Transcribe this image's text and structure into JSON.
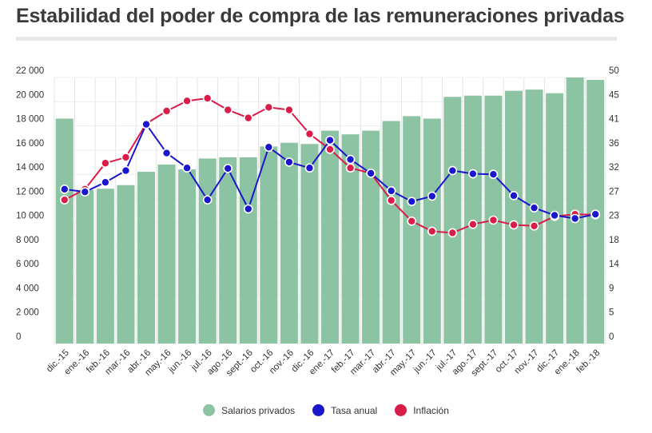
{
  "chart_data": {
    "type": "bar",
    "title": "Estabilidad del poder de compra de las remuneraciones privadas",
    "categories": [
      "dic.-15",
      "ene.-16",
      "feb.-16",
      "mar.-16",
      "abr.-16",
      "may.-16",
      "jun.-16",
      "jul.-16",
      "ago.-16",
      "sept.-16",
      "oct.-16",
      "nov.-16",
      "dic.-16",
      "ene.-17",
      "feb.-17",
      "mar.-17",
      "abr.-17",
      "may.-17",
      "jun.-17",
      "jul.-17",
      "ago.-17",
      "sept.-17",
      "oct.-17",
      "nov.-17",
      "dic.-17",
      "ene.-18",
      "feb.-18"
    ],
    "left_axis": {
      "ylim": [
        0,
        22000
      ],
      "ticks": [
        "22 000",
        "20 000",
        "18 000",
        "16 000",
        "14 000",
        "12 000",
        "10 000",
        "8 000",
        "6 000",
        "4 000",
        "2 000",
        "0"
      ]
    },
    "right_axis": {
      "ylim": [
        0,
        50
      ],
      "ticks": [
        "50",
        "45",
        "41",
        "36",
        "32",
        "27",
        "23",
        "18",
        "14",
        "9",
        "5",
        "0"
      ]
    },
    "grid": true,
    "legend_position": "bottom-center",
    "series": [
      {
        "name": "Salarios privados",
        "type": "bar",
        "axis": "left",
        "color": "#8cc3a2",
        "values": [
          18600,
          12700,
          12800,
          13100,
          14200,
          14800,
          14400,
          15300,
          15400,
          15400,
          16300,
          16600,
          16500,
          17600,
          17300,
          17600,
          18400,
          18800,
          18600,
          20400,
          20500,
          20500,
          20900,
          21000,
          20700,
          22000,
          21800
        ]
      },
      {
        "name": "Tasa anual",
        "type": "line",
        "axis": "right",
        "color": "#1a16cc",
        "values": [
          29.0,
          28.5,
          30.3,
          32.5,
          41.2,
          35.8,
          33.0,
          27.0,
          32.9,
          25.3,
          36.9,
          34.1,
          33.0,
          38.2,
          34.6,
          32.0,
          28.7,
          26.7,
          27.7,
          32.5,
          31.9,
          31.8,
          27.8,
          25.5,
          24.1,
          23.5,
          24.3
        ]
      },
      {
        "name": "Inflación",
        "type": "line",
        "axis": "right",
        "color": "#d81d48",
        "values": [
          27.0,
          29.0,
          33.9,
          35.0,
          41.3,
          43.7,
          45.6,
          46.1,
          43.9,
          42.4,
          44.4,
          43.9,
          39.4,
          36.5,
          33.0,
          32.0,
          26.9,
          23.0,
          21.1,
          20.8,
          22.4,
          23.2,
          22.3,
          22.1,
          23.9,
          24.3,
          24.2
        ]
      }
    ]
  }
}
